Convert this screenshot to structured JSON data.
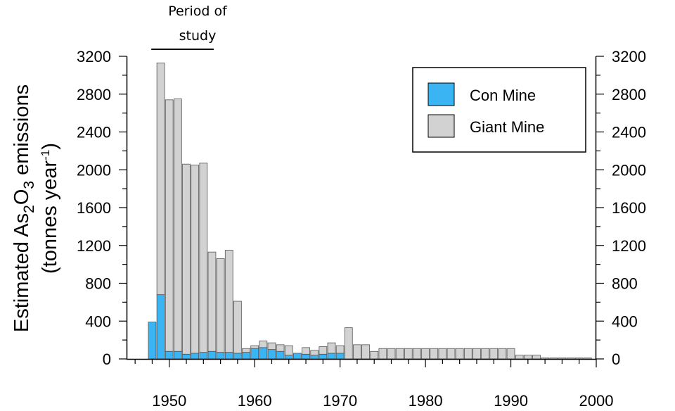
{
  "chart_data": {
    "type": "bar",
    "stacked": true,
    "title": "",
    "xlabel": "",
    "ylabel_main": "Estimated As",
    "ylabel_sub_2": "2",
    "ylabel_mid": "O",
    "ylabel_sub_3": "3",
    "ylabel_end": " emissions",
    "ylabel_line2_start": "(tonnes year",
    "ylabel_line2_sup": "-1",
    "ylabel_line2_end": ")",
    "ylim": [
      0,
      3200
    ],
    "xlim": [
      1945,
      2000
    ],
    "yticks": [
      0,
      400,
      800,
      1200,
      1600,
      2000,
      2400,
      2800,
      3200
    ],
    "xticks": [
      1950,
      1960,
      1970,
      1980,
      1990,
      2000
    ],
    "annotation": {
      "line1": "Period of",
      "line2": "study",
      "from": 1947.9,
      "to": 1955.2
    },
    "legend": {
      "position": "top-right",
      "items": [
        "Con Mine",
        "Giant Mine"
      ]
    },
    "colors": {
      "con": "#3ab4f2",
      "giant": "#d2d2d2",
      "edge": "#555555"
    },
    "x": [
      1948,
      1949,
      1950,
      1951,
      1952,
      1953,
      1954,
      1955,
      1956,
      1957,
      1958,
      1959,
      1960,
      1961,
      1962,
      1963,
      1964,
      1965,
      1966,
      1967,
      1968,
      1969,
      1970,
      1971,
      1972,
      1973,
      1974,
      1975,
      1976,
      1977,
      1978,
      1979,
      1980,
      1981,
      1982,
      1983,
      1984,
      1985,
      1986,
      1987,
      1988,
      1989,
      1990,
      1991,
      1992,
      1993,
      1994,
      1995,
      1996,
      1997,
      1998,
      1999
    ],
    "series": [
      {
        "name": "Con Mine",
        "values": [
          390,
          680,
          80,
          80,
          50,
          60,
          70,
          80,
          70,
          70,
          60,
          70,
          110,
          120,
          100,
          80,
          40,
          60,
          50,
          40,
          50,
          60,
          60,
          0,
          0,
          0,
          0,
          0,
          0,
          0,
          0,
          0,
          0,
          0,
          0,
          0,
          0,
          0,
          0,
          0,
          0,
          0,
          0,
          0,
          0,
          0,
          0,
          0,
          0,
          0,
          0,
          0
        ]
      },
      {
        "name": "Giant Mine",
        "values": [
          0,
          2450,
          2660,
          2670,
          2010,
          1990,
          2000,
          1050,
          990,
          1080,
          550,
          40,
          30,
          70,
          70,
          70,
          100,
          0,
          70,
          50,
          80,
          110,
          80,
          330,
          150,
          150,
          80,
          110,
          110,
          110,
          110,
          110,
          110,
          110,
          110,
          110,
          110,
          110,
          110,
          110,
          110,
          110,
          110,
          40,
          40,
          40,
          10,
          10,
          10,
          10,
          10,
          10
        ]
      }
    ]
  }
}
